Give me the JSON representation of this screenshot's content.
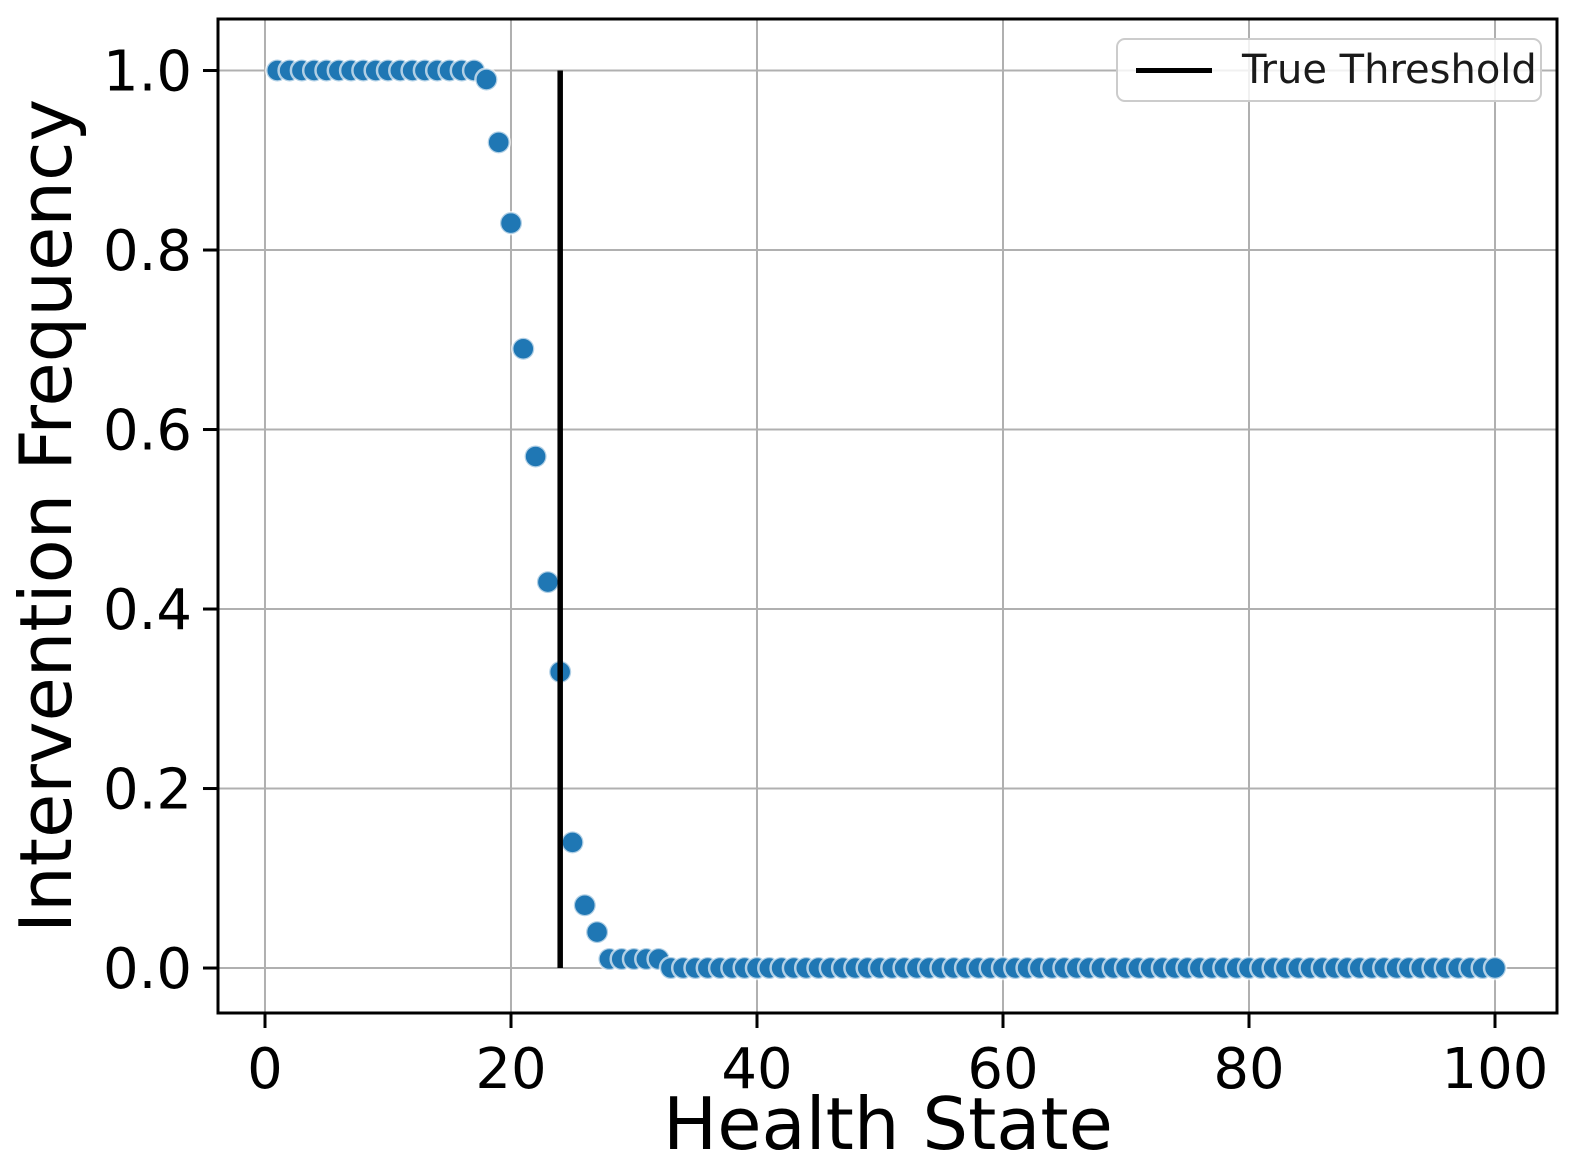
{
  "figure": {
    "background": "#ffffff",
    "text_color": "#000000"
  },
  "chart_data": {
    "type": "scatter",
    "title": "",
    "xlabel": "Health State",
    "ylabel": "Intervention Frequency",
    "xlim": [
      -3.82,
      105.04
    ],
    "ylim": [
      -0.0501,
      1.0574
    ],
    "xticks": [
      0,
      20,
      40,
      60,
      80,
      100
    ],
    "xtick_labels": [
      "0",
      "20",
      "40",
      "60",
      "80",
      "100"
    ],
    "yticks": [
      0.0,
      0.2,
      0.4,
      0.6,
      0.8,
      1.0
    ],
    "ytick_labels": [
      "0.0",
      "0.2",
      "0.4",
      "0.6",
      "0.8",
      "1.0"
    ],
    "grid": true,
    "grid_color": "#b0b0b0",
    "spine_color": "#000000",
    "legend": {
      "position": "upper right",
      "entries": [
        {
          "label": "True Threshold",
          "type": "line",
          "color": "#000000"
        }
      ]
    },
    "series": [
      {
        "name": "intervention_frequency",
        "type": "scatter",
        "color": "#1f77b4",
        "x": [
          1,
          2,
          3,
          4,
          5,
          6,
          7,
          8,
          9,
          10,
          11,
          12,
          13,
          14,
          15,
          16,
          17,
          18,
          19,
          20,
          21,
          22,
          23,
          24,
          25,
          26,
          27,
          28,
          29,
          30,
          31,
          32,
          33,
          34,
          35,
          36,
          37,
          38,
          39,
          40,
          41,
          42,
          43,
          44,
          45,
          46,
          47,
          48,
          49,
          50,
          51,
          52,
          53,
          54,
          55,
          56,
          57,
          58,
          59,
          60,
          61,
          62,
          63,
          64,
          65,
          66,
          67,
          68,
          69,
          70,
          71,
          72,
          73,
          74,
          75,
          76,
          77,
          78,
          79,
          80,
          81,
          82,
          83,
          84,
          85,
          86,
          87,
          88,
          89,
          90,
          91,
          92,
          93,
          94,
          95,
          96,
          97,
          98,
          99,
          100
        ],
        "y": [
          1.0,
          1.0,
          1.0,
          1.0,
          1.0,
          1.0,
          1.0,
          1.0,
          1.0,
          1.0,
          1.0,
          1.0,
          1.0,
          1.0,
          1.0,
          1.0,
          1.0,
          0.99,
          0.92,
          0.83,
          0.69,
          0.57,
          0.43,
          0.33,
          0.14,
          0.07,
          0.04,
          0.01,
          0.01,
          0.01,
          0.01,
          0.01,
          0.0,
          0.0,
          0.0,
          0.0,
          0.0,
          0.0,
          0.0,
          0.0,
          0.0,
          0.0,
          0.0,
          0.0,
          0.0,
          0.0,
          0.0,
          0.0,
          0.0,
          0.0,
          0.0,
          0.0,
          0.0,
          0.0,
          0.0,
          0.0,
          0.0,
          0.0,
          0.0,
          0.0,
          0.0,
          0.0,
          0.0,
          0.0,
          0.0,
          0.0,
          0.0,
          0.0,
          0.0,
          0.0,
          0.0,
          0.0,
          0.0,
          0.0,
          0.0,
          0.0,
          0.0,
          0.0,
          0.0,
          0.0,
          0.0,
          0.0,
          0.0,
          0.0,
          0.0,
          0.0,
          0.0,
          0.0,
          0.0,
          0.0,
          0.0,
          0.0,
          0.0,
          0.0,
          0.0,
          0.0,
          0.0,
          0.0,
          0.0,
          0.0
        ]
      },
      {
        "name": "true_threshold",
        "type": "vline",
        "x": 24,
        "y_from": 0.0,
        "y_to": 1.0,
        "color": "#000000"
      }
    ]
  }
}
